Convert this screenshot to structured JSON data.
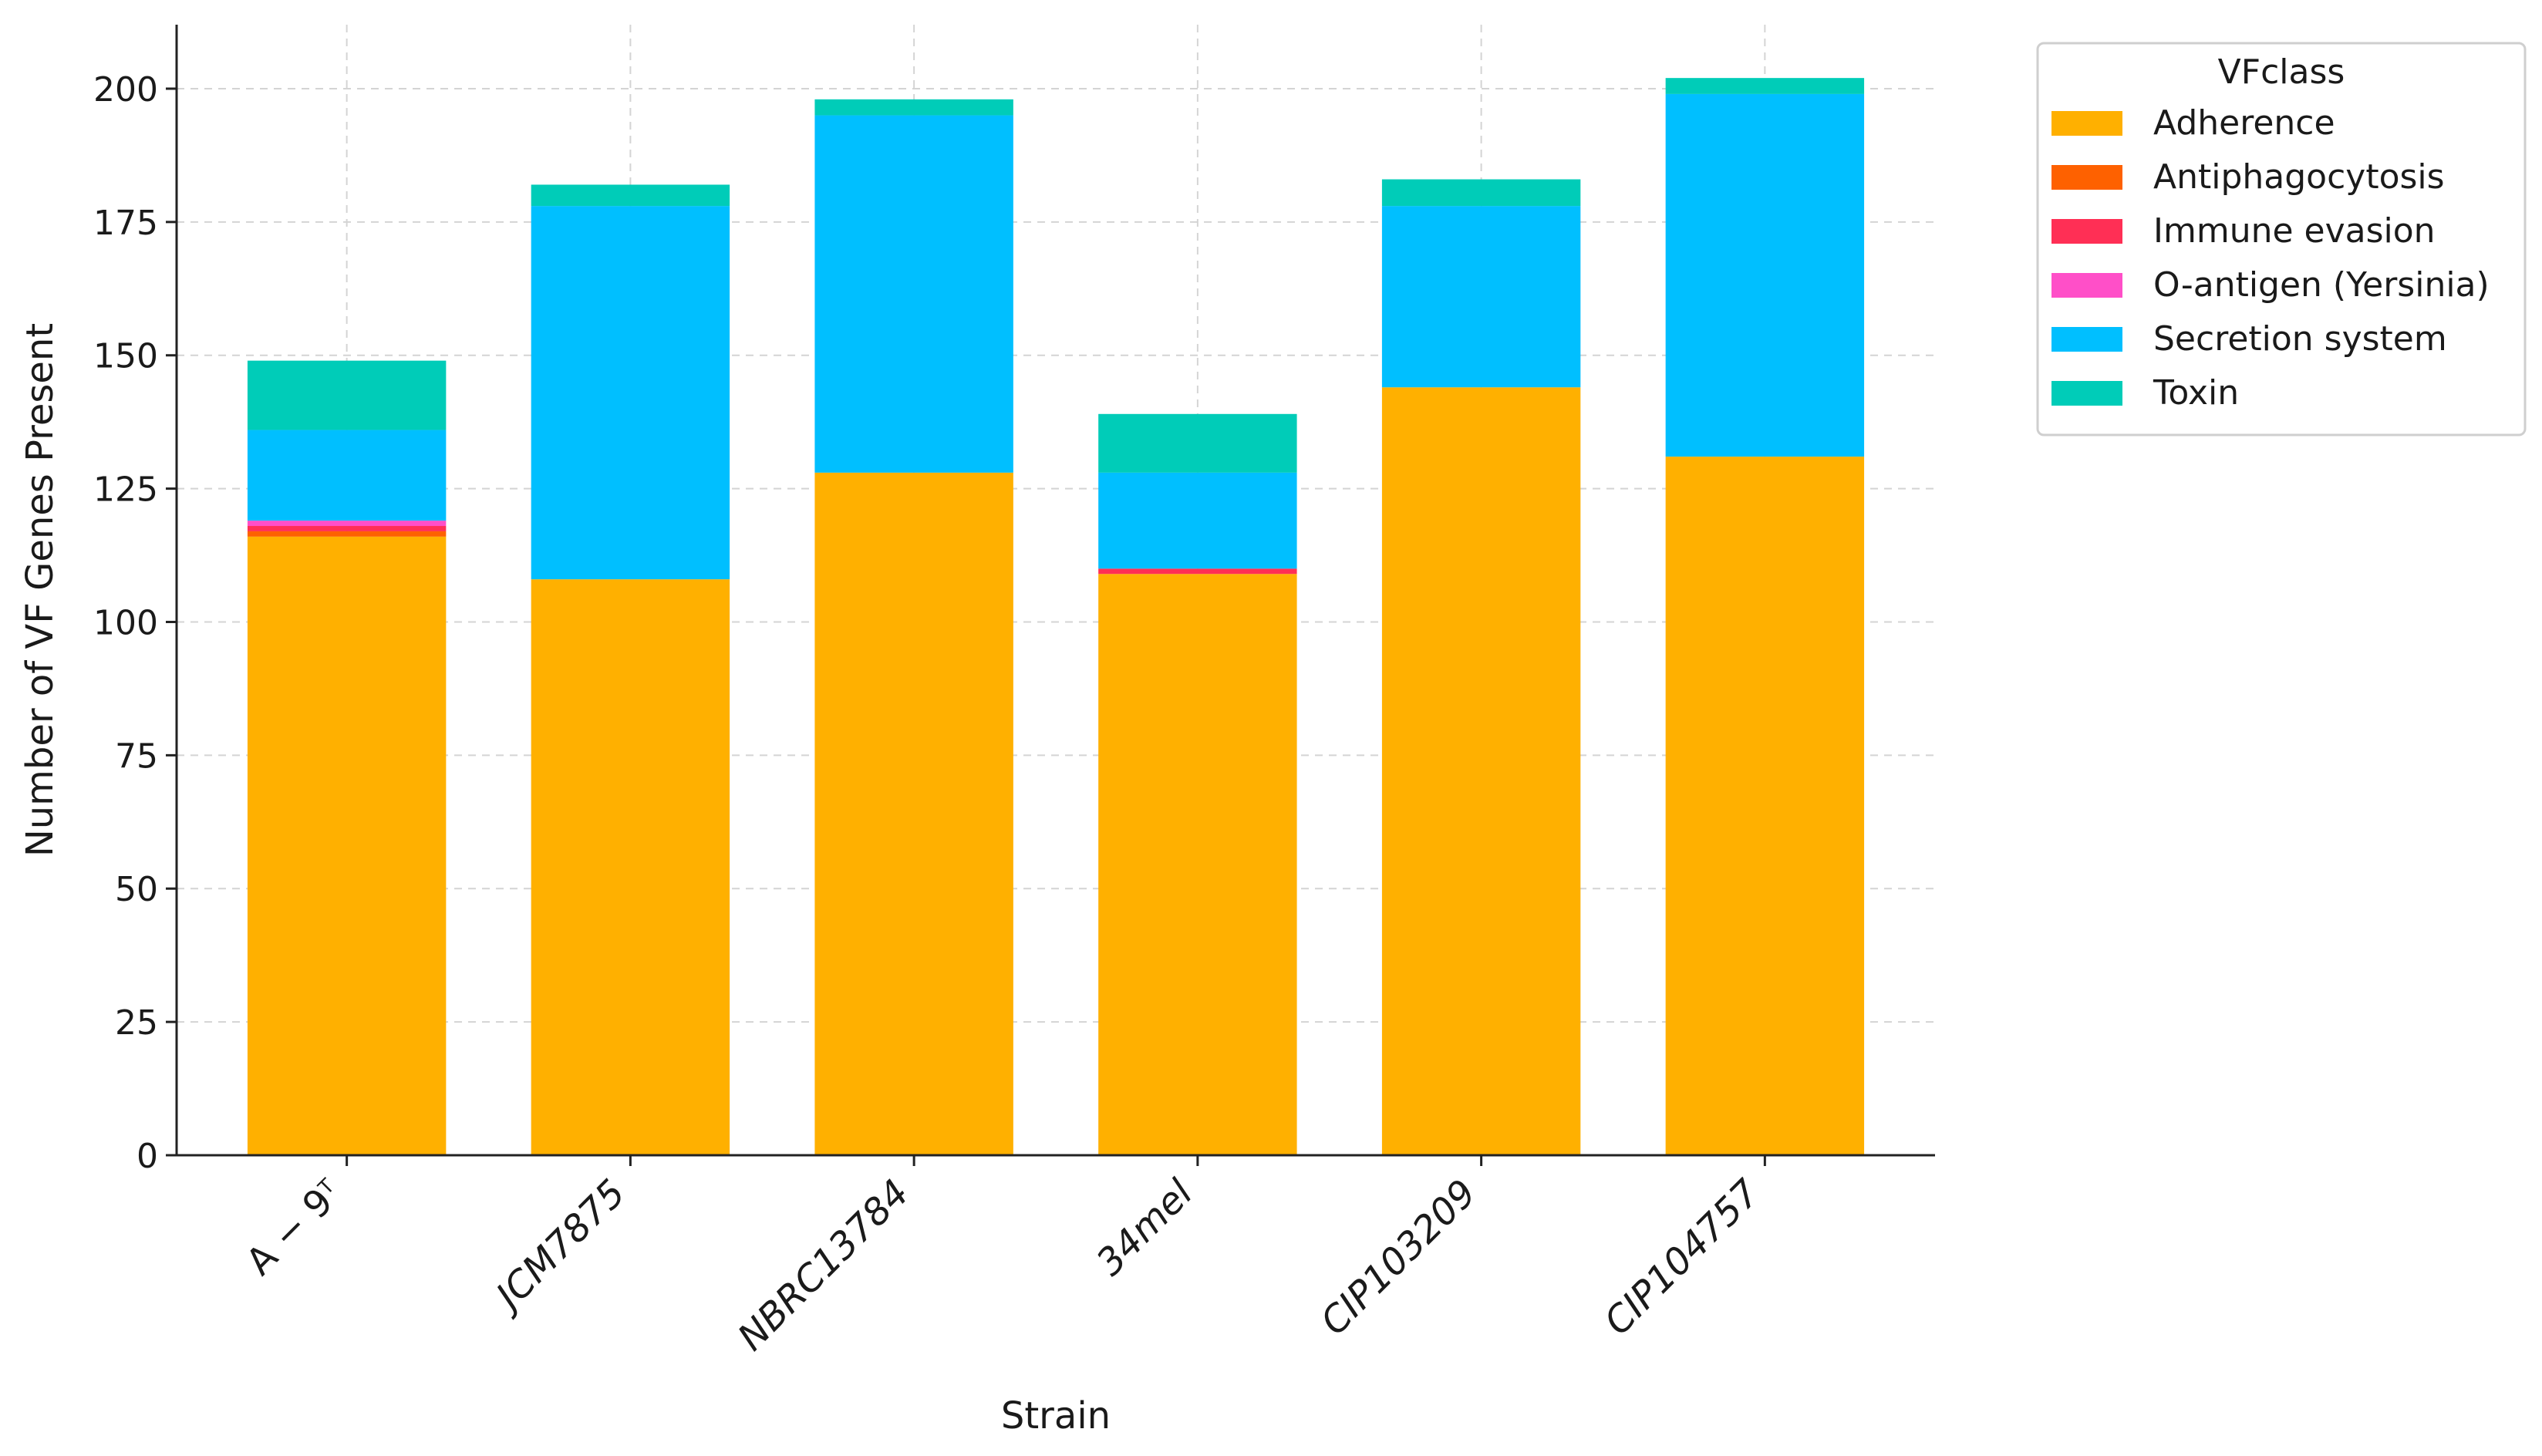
{
  "chart_data": {
    "type": "bar",
    "stacked": true,
    "xlabel": "Strain",
    "ylabel": "Number of VF Genes Present",
    "ylim": [
      0,
      212
    ],
    "yticks": [
      0,
      25,
      50,
      75,
      100,
      125,
      150,
      175,
      200
    ],
    "grid": true,
    "legend_title": "VFclass",
    "legend_position": "outside-top-right",
    "categories": [
      {
        "base": "A − 9",
        "sup": "T",
        "italic": false
      },
      {
        "base": "JCM7875",
        "sup": "",
        "italic": true
      },
      {
        "base": "NBRC13784",
        "sup": "",
        "italic": true
      },
      {
        "base": "34mel",
        "sup": "",
        "italic": true
      },
      {
        "base": "CIP103209",
        "sup": "",
        "italic": true
      },
      {
        "base": "CIP104757",
        "sup": "",
        "italic": true
      }
    ],
    "series": [
      {
        "name": "Adherence",
        "color": "#FFB000",
        "values": [
          116,
          108,
          128,
          109,
          144,
          131
        ]
      },
      {
        "name": "Antiphagocytosis",
        "color": "#FE6100",
        "values": [
          1,
          0,
          0,
          0,
          0,
          0
        ]
      },
      {
        "name": "Immune evasion",
        "color": "#FF2F55",
        "values": [
          1,
          0,
          0,
          1,
          0,
          0
        ]
      },
      {
        "name": "O-antigen (Yersinia)",
        "color": "#FF4FC8",
        "values": [
          1,
          0,
          0,
          0,
          0,
          0
        ]
      },
      {
        "name": "Secretion system",
        "color": "#00BFFF",
        "values": [
          17,
          70,
          67,
          18,
          34,
          68
        ]
      },
      {
        "name": "Toxin",
        "color": "#00CCB8",
        "values": [
          13,
          4,
          3,
          11,
          5,
          3
        ]
      }
    ]
  }
}
